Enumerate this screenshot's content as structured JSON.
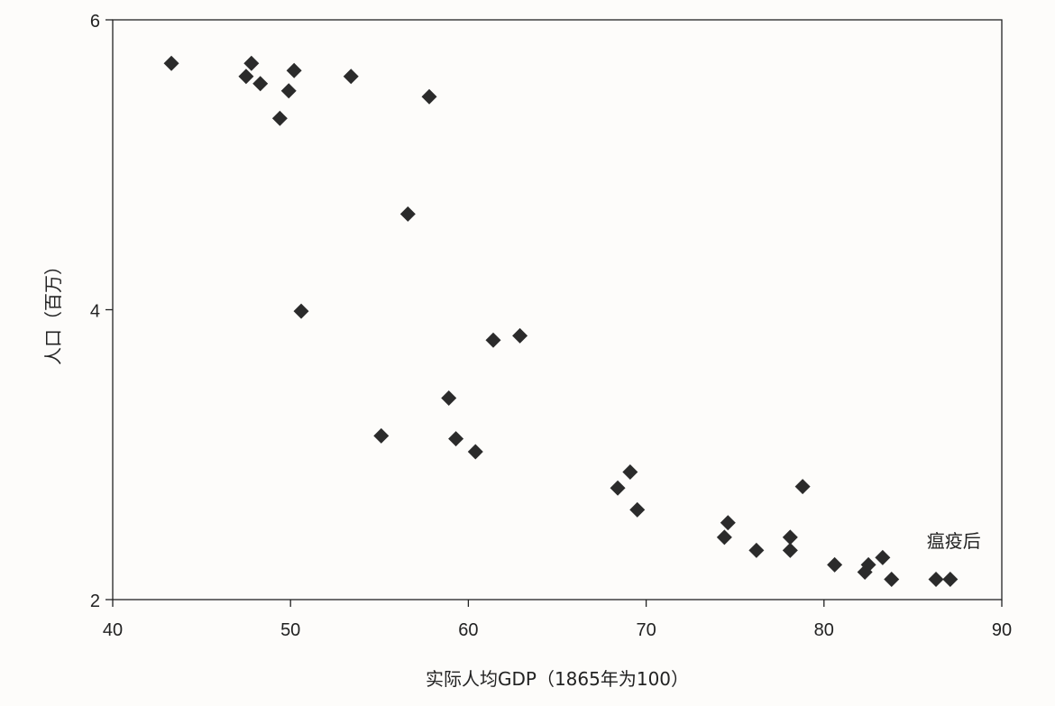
{
  "chart_data": {
    "type": "scatter",
    "title": "",
    "xlabel": "实际人均GDP（1865年为100）",
    "ylabel": "人口（百万）",
    "xlim": [
      40,
      90
    ],
    "ylim": [
      2,
      6
    ],
    "xticks": [
      "40",
      "50",
      "60",
      "70",
      "80",
      "90"
    ],
    "yticks": [
      "2",
      "4",
      "6"
    ],
    "grid": false,
    "marker": "diamond",
    "marker_color": "#2b2b2b",
    "points": [
      {
        "x": 43.3,
        "y": 5.7
      },
      {
        "x": 47.5,
        "y": 5.61
      },
      {
        "x": 47.8,
        "y": 5.7
      },
      {
        "x": 48.3,
        "y": 5.56
      },
      {
        "x": 49.4,
        "y": 5.32
      },
      {
        "x": 49.9,
        "y": 5.51
      },
      {
        "x": 50.2,
        "y": 5.65
      },
      {
        "x": 53.4,
        "y": 5.61
      },
      {
        "x": 57.8,
        "y": 5.47
      },
      {
        "x": 56.6,
        "y": 4.66
      },
      {
        "x": 50.6,
        "y": 3.99
      },
      {
        "x": 55.1,
        "y": 3.13
      },
      {
        "x": 58.9,
        "y": 3.39
      },
      {
        "x": 59.3,
        "y": 3.11
      },
      {
        "x": 60.4,
        "y": 3.02
      },
      {
        "x": 61.4,
        "y": 3.79
      },
      {
        "x": 62.9,
        "y": 3.82
      },
      {
        "x": 68.4,
        "y": 2.77
      },
      {
        "x": 69.1,
        "y": 2.88
      },
      {
        "x": 69.5,
        "y": 2.62
      },
      {
        "x": 74.4,
        "y": 2.43
      },
      {
        "x": 74.6,
        "y": 2.53
      },
      {
        "x": 76.2,
        "y": 2.34
      },
      {
        "x": 78.1,
        "y": 2.34
      },
      {
        "x": 78.1,
        "y": 2.43
      },
      {
        "x": 78.8,
        "y": 2.78
      },
      {
        "x": 80.6,
        "y": 2.24
      },
      {
        "x": 82.3,
        "y": 2.19
      },
      {
        "x": 82.5,
        "y": 2.24
      },
      {
        "x": 83.3,
        "y": 2.29
      },
      {
        "x": 83.8,
        "y": 2.14
      },
      {
        "x": 86.3,
        "y": 2.14
      },
      {
        "x": 87.1,
        "y": 2.14
      }
    ],
    "annotations": [
      {
        "text": "瘟疫后",
        "x": 87.3,
        "y": 2.36
      }
    ]
  }
}
